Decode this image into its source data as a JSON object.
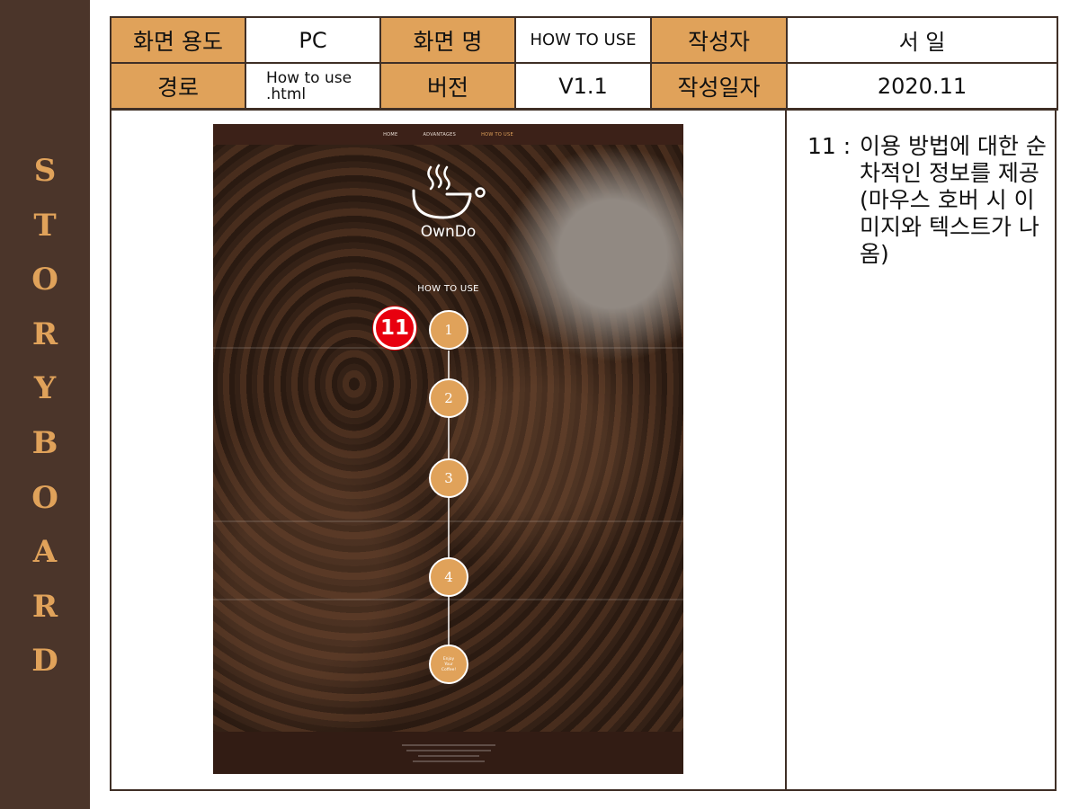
{
  "storyboard": {
    "letters": [
      "S",
      "T",
      "O",
      "R",
      "Y",
      "B",
      "O",
      "A",
      "R",
      "D"
    ]
  },
  "header": {
    "screen_use_label": "화면 용도",
    "screen_use_value": "PC",
    "screen_name_label": "화면 명",
    "screen_name_value": "HOW TO USE",
    "author_label": "작성자",
    "author_value": "서 일",
    "path_label": "경로",
    "path_value_line1": "How to use",
    "path_value_line2": ".html",
    "version_label": "버전",
    "version_value": "V1.1",
    "date_label": "작성일자",
    "date_value": "2020.11"
  },
  "mockup": {
    "nav": [
      "HOME",
      "ADVANTAGES",
      "HOW TO USE"
    ],
    "active_nav": "HOW TO USE",
    "brand": "OwnDo",
    "section_title": "HOW TO USE",
    "steps": [
      "1",
      "2",
      "3",
      "4"
    ],
    "final_step": [
      "Enjoy",
      "Your",
      "Coffee!"
    ],
    "marker": "11"
  },
  "note": {
    "number": "11 :",
    "text": "이용 방법에 대한 순차적인 정보를 제공(마우스 호버 시 이미지와 텍스트가 나옴)"
  },
  "colors": {
    "band": "#4b352a",
    "accent": "#e0a25a",
    "border": "#3f2f26",
    "marker": "#e8000f"
  }
}
